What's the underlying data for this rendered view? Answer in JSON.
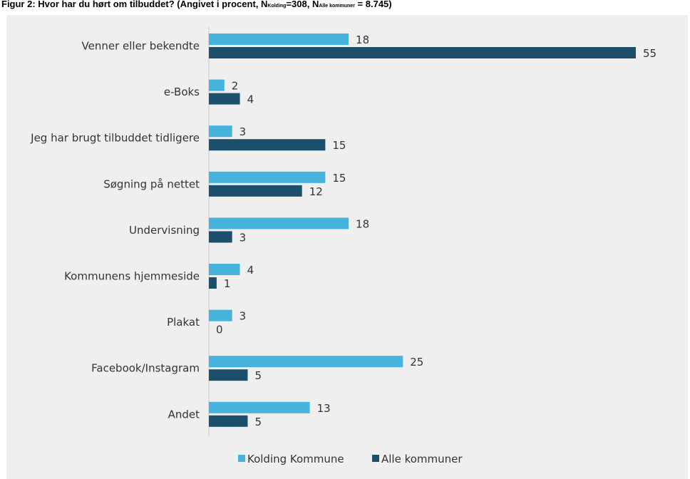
{
  "figure": {
    "title_main": "Figur 2: Hvor har du hørt om tilbuddet? (Angivet i procent, N",
    "title_sub1": "Kolding",
    "title_mid": "=308, N",
    "title_sub2": "Alle kommuner",
    "title_end": " = 8.745)"
  },
  "chart_data": {
    "type": "bar",
    "orientation": "horizontal",
    "categories": [
      "Venner eller bekendte",
      "e-Boks",
      "Jeg har brugt tilbuddet tidligere",
      "Søgning på nettet",
      "Undervisning",
      "Kommunens hjemmeside",
      "Plakat",
      "Facebook/Instagram",
      "Andet"
    ],
    "series": [
      {
        "name": "Kolding Kommune",
        "color": "#45b3dc",
        "values": [
          18,
          2,
          3,
          15,
          18,
          4,
          3,
          25,
          13
        ]
      },
      {
        "name": "Alle kommuner",
        "color": "#1b4f6b",
        "values": [
          55,
          4,
          15,
          12,
          3,
          1,
          0,
          5,
          5
        ]
      }
    ],
    "xlim": [
      0,
      55
    ],
    "grid": false,
    "legend_position": "bottom-center"
  }
}
